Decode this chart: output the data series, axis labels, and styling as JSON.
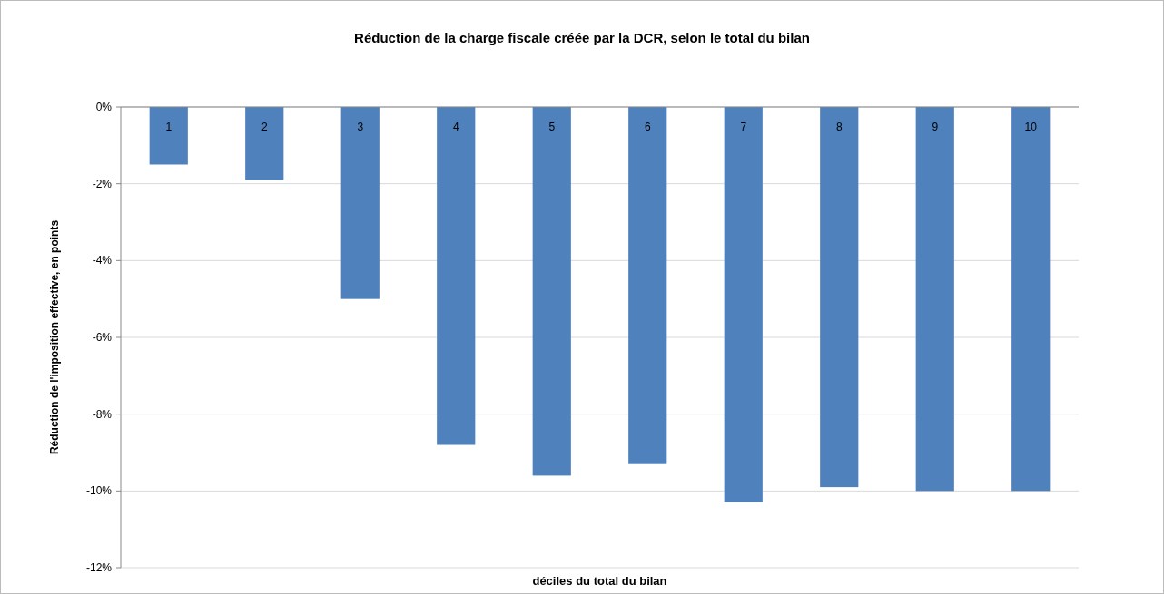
{
  "chart_data": {
    "type": "bar",
    "title": "Réduction de la charge fiscale créée par la DCR, selon le total du bilan",
    "xlabel": "déciles du total du bilan",
    "ylabel": "Réduction de l'imposition effective, en points",
    "categories": [
      "1",
      "2",
      "3",
      "4",
      "5",
      "6",
      "7",
      "8",
      "9",
      "10"
    ],
    "values": [
      -1.5,
      -1.9,
      -5.0,
      -8.8,
      -9.6,
      -9.3,
      -10.3,
      -9.9,
      -10.0,
      -10.0
    ],
    "color": "#4f81bd",
    "ylim": [
      -12,
      0
    ],
    "yticks": [
      {
        "value": -12,
        "label": "-12%"
      },
      {
        "value": -10,
        "label": "-10%"
      },
      {
        "value": -8,
        "label": "-8%"
      },
      {
        "value": -6,
        "label": "-6%"
      },
      {
        "value": -4,
        "label": "-4%"
      },
      {
        "value": -2,
        "label": "-2%"
      },
      {
        "value": 0,
        "label": "0%"
      }
    ],
    "grid": "y"
  }
}
